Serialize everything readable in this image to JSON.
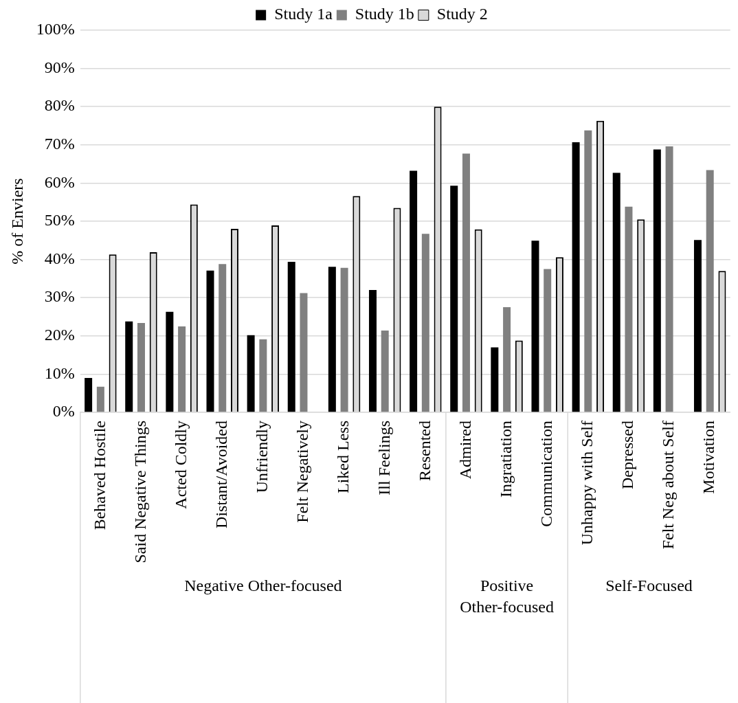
{
  "chart_data": {
    "type": "bar",
    "ylabel": "% of Enviers",
    "categories": [
      "Behaved Hostile",
      "Said Negative Things",
      "Acted Coldly",
      "Distant/Avoided",
      "Unfriendly",
      "Felt Negatively",
      "Liked Less",
      "Ill Feelings",
      "Resented",
      "Admired",
      "Ingratiation",
      "Communication",
      "Unhappy with Self",
      "Depressed",
      "Felt Neg about Self",
      "Motivation"
    ],
    "series": [
      {
        "name": "Study 1a",
        "color": "#000000",
        "values": [
          9,
          23.8,
          26.3,
          37.1,
          20.2,
          39.4,
          38.1,
          32,
          63.2,
          59.3,
          17,
          44.9,
          70.7,
          62.7,
          68.8,
          45.1
        ]
      },
      {
        "name": "Study 1b",
        "color": "#808080",
        "values": [
          6.7,
          23.4,
          22.5,
          38.8,
          19.1,
          31.2,
          37.8,
          21.4,
          46.7,
          67.7,
          27.5,
          37.5,
          73.8,
          53.8,
          69.6,
          63.4
        ]
      },
      {
        "name": "Study 2",
        "color": "#d9d9d9",
        "values": [
          41.3,
          41.9,
          54.4,
          48,
          48.9,
          null,
          56.6,
          53.5,
          80,
          47.9,
          18.8,
          40.6,
          76.3,
          50.5,
          null,
          37
        ]
      }
    ],
    "ylim": [
      0,
      100
    ],
    "yticks": [
      {
        "value": 0,
        "label": "0%"
      },
      {
        "value": 10,
        "label": "10%"
      },
      {
        "value": 20,
        "label": "20%"
      },
      {
        "value": 30,
        "label": "30%"
      },
      {
        "value": 40,
        "label": "40%"
      },
      {
        "value": 50,
        "label": "50%"
      },
      {
        "value": 60,
        "label": "60%"
      },
      {
        "value": 70,
        "label": "70%"
      },
      {
        "value": 80,
        "label": "80%"
      },
      {
        "value": 90,
        "label": "90%"
      },
      {
        "value": 100,
        "label": "100%"
      }
    ],
    "grid": "y",
    "legend": "top",
    "annotations": [
      "Negative Other-focused",
      "Positive Other-focused",
      "Self-Focused"
    ]
  }
}
